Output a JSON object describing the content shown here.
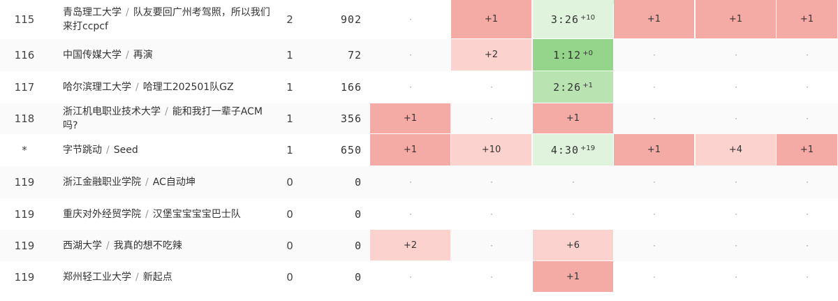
{
  "colors": {
    "first_solve": "#95d58b",
    "accepted": "#b9e4b2",
    "accepted_light": "#e0f3dc",
    "failed": "#f4aaa5",
    "failed_light": "#fbd2ce",
    "failed_mid": "#f8c0bb"
  },
  "rows": [
    {
      "rank": "115",
      "school": "青岛理工大学",
      "team": "队友要回广州考驾照，所以我们来打ccpcf",
      "solved": "2",
      "penalty": "902",
      "cells": [
        {
          "kind": "blank",
          "text": "·"
        },
        {
          "kind": "failed",
          "text": "+1"
        },
        {
          "kind": "accepted_light",
          "time": "3:26",
          "tries": "+10"
        },
        {
          "kind": "failed",
          "text": "+1"
        },
        {
          "kind": "failed",
          "text": "+1"
        },
        {
          "kind": "failed",
          "text": "+1"
        }
      ]
    },
    {
      "rank": "116",
      "school": "中国传媒大学",
      "team": "再演",
      "solved": "1",
      "penalty": "72",
      "cells": [
        {
          "kind": "blank",
          "text": "·"
        },
        {
          "kind": "failed_light",
          "text": "+2"
        },
        {
          "kind": "first_solve",
          "time": "1:12",
          "tries": "+0"
        },
        {
          "kind": "blank",
          "text": "·"
        },
        {
          "kind": "blank",
          "text": "·"
        },
        {
          "kind": "blank",
          "text": "·"
        }
      ]
    },
    {
      "rank": "117",
      "school": "哈尔滨理工大学",
      "team": "哈理工202501队GZ",
      "solved": "1",
      "penalty": "166",
      "cells": [
        {
          "kind": "blank",
          "text": "·"
        },
        {
          "kind": "blank",
          "text": "·"
        },
        {
          "kind": "accepted",
          "time": "2:26",
          "tries": "+1"
        },
        {
          "kind": "blank",
          "text": "·"
        },
        {
          "kind": "blank",
          "text": "·"
        },
        {
          "kind": "blank",
          "text": "·"
        }
      ]
    },
    {
      "rank": "118",
      "school": "浙江机电职业技术大学",
      "team": "能和我打一辈子ACM吗?",
      "solved": "1",
      "penalty": "356",
      "cells": [
        {
          "kind": "failed",
          "text": "+1"
        },
        {
          "kind": "blank",
          "text": "·"
        },
        {
          "kind": "failed",
          "text": "+1"
        },
        {
          "kind": "blank",
          "text": "·"
        },
        {
          "kind": "blank",
          "text": "·"
        },
        {
          "kind": "blank",
          "text": "·"
        }
      ]
    },
    {
      "rank": "*",
      "school": "字节跳动",
      "team": "Seed",
      "solved": "1",
      "penalty": "650",
      "cells": [
        {
          "kind": "failed",
          "text": "+1"
        },
        {
          "kind": "failed_light",
          "text": "+10"
        },
        {
          "kind": "accepted_light",
          "time": "4:30",
          "tries": "+19"
        },
        {
          "kind": "failed",
          "text": "+1"
        },
        {
          "kind": "failed_light",
          "text": "+4"
        },
        {
          "kind": "failed",
          "text": "+1"
        }
      ]
    },
    {
      "rank": "119",
      "school": "浙江金融职业学院",
      "team": "AC自动坤",
      "solved": "0",
      "penalty": "0",
      "cells": [
        {
          "kind": "blank",
          "text": "·"
        },
        {
          "kind": "blank",
          "text": "·"
        },
        {
          "kind": "blank",
          "text": "·"
        },
        {
          "kind": "blank",
          "text": "·"
        },
        {
          "kind": "blank",
          "text": "·"
        },
        {
          "kind": "blank",
          "text": "·"
        }
      ]
    },
    {
      "rank": "119",
      "school": "重庆对外经贸学院",
      "team": "汉堡宝宝宝宝巴士队",
      "solved": "0",
      "penalty": "0",
      "cells": [
        {
          "kind": "blank",
          "text": "·"
        },
        {
          "kind": "blank",
          "text": "·"
        },
        {
          "kind": "blank",
          "text": "·"
        },
        {
          "kind": "blank",
          "text": "·"
        },
        {
          "kind": "blank",
          "text": "·"
        },
        {
          "kind": "blank",
          "text": "·"
        }
      ]
    },
    {
      "rank": "119",
      "school": "西湖大学",
      "team": "我真的想不吃辣",
      "solved": "0",
      "penalty": "0",
      "cells": [
        {
          "kind": "failed_light",
          "text": "+2"
        },
        {
          "kind": "blank",
          "text": "·"
        },
        {
          "kind": "failed_light",
          "text": "+6"
        },
        {
          "kind": "blank",
          "text": "·"
        },
        {
          "kind": "blank",
          "text": "·"
        },
        {
          "kind": "blank",
          "text": "·"
        }
      ]
    },
    {
      "rank": "119",
      "school": "郑州轻工业大学",
      "team": "新起点",
      "solved": "0",
      "penalty": "0",
      "cells": [
        {
          "kind": "blank",
          "text": "·"
        },
        {
          "kind": "blank",
          "text": "·"
        },
        {
          "kind": "failed",
          "text": "+1"
        },
        {
          "kind": "blank",
          "text": "·"
        },
        {
          "kind": "blank",
          "text": "·"
        },
        {
          "kind": "blank",
          "text": "·"
        }
      ]
    }
  ]
}
